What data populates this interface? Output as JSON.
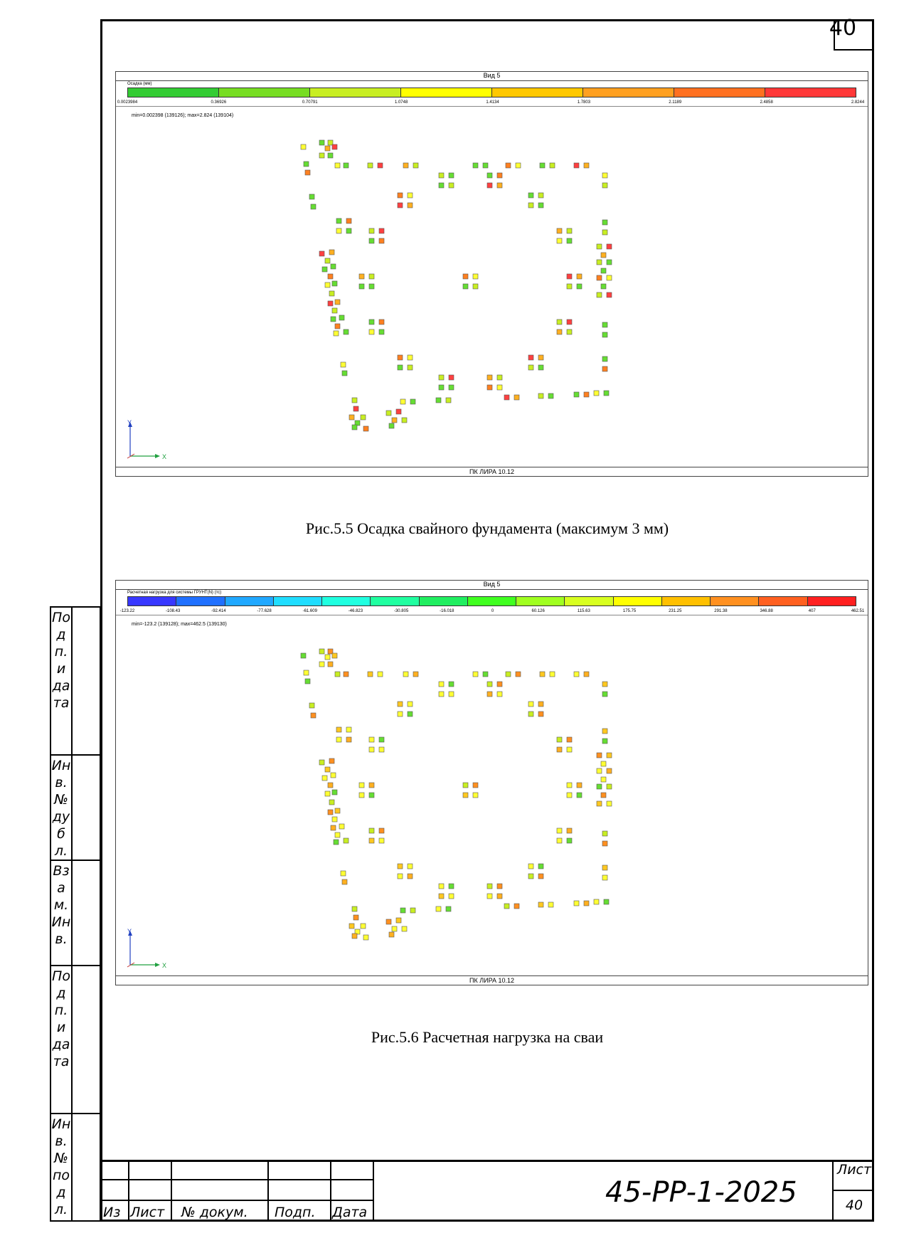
{
  "page_number_top": "40",
  "figure1": {
    "view_title": "Вид 5",
    "scale_title": "Осадка (мм)",
    "scale_colors": [
      "#33cc33",
      "#77dd22",
      "#c8ee22",
      "#ffff00",
      "#ffc800",
      "#ffa020",
      "#ff7020",
      "#ff3838"
    ],
    "scale_ticks": [
      "0.0023984",
      "0.36926",
      "0.70791",
      "1.0748",
      "1.4134",
      "1.7803",
      "2.1189",
      "2.4858",
      "2.8244"
    ],
    "minmax": "min=0.002398 (139126); max=2.824 (139104)",
    "footer": "ПК ЛИРА 10.12",
    "axis_y": "Y",
    "axis_x": "X"
  },
  "caption1": "Рис.5.5 Осадка свайного фундамента (максимум 3 мм)",
  "figure2": {
    "view_title": "Вид 5",
    "scale_title": "Расчетная нагрузка для системы ГРУНТ(N) (тс)",
    "scale_colors": [
      "#3838ff",
      "#2070ff",
      "#20a8ff",
      "#20ddff",
      "#20ffe0",
      "#20ffa0",
      "#20ee60",
      "#40ff20",
      "#a0ff20",
      "#d8ff20",
      "#ffff00",
      "#ffc000",
      "#ff9020",
      "#ff6020",
      "#ff2020"
    ],
    "scale_ticks": [
      "-123.22",
      "-108.43",
      "-92.414",
      "-77.628",
      "-61.609",
      "-46.823",
      "-30.805",
      "-16.018",
      "0",
      "60.126",
      "115.63",
      "175.75",
      "231.25",
      "291.38",
      "346.88",
      "407",
      "462.51"
    ],
    "minmax": "min=-123.2 (139128); max=462.5 (139130)",
    "footer": "ПК ЛИРА 10.12",
    "axis_y": "Y",
    "axis_x": "X"
  },
  "caption2": "Рис.5.6 Расчетная нагрузка на сваи",
  "sidebar": [
    {
      "label": "Подп. и дата"
    },
    {
      "label": "Инв. № дубл."
    },
    {
      "label": "Взам. Инв."
    },
    {
      "label": "Подп. и дата"
    },
    {
      "label": "Инв. № подл."
    }
  ],
  "title_block": {
    "code": "45-РР-1-2025",
    "col_izm": "Из",
    "col_list": "Лист",
    "col_docnum": "№ докум.",
    "col_podp": "Подп.",
    "col_data": "Дата",
    "sheet_label": "Лист",
    "sheet_number": "40"
  }
}
